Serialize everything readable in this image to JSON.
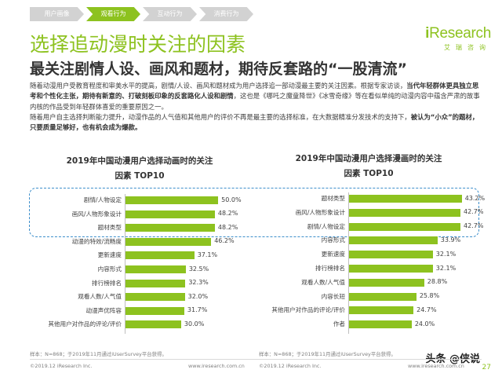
{
  "nav": {
    "tabs": [
      {
        "label": "用户画像",
        "active": false
      },
      {
        "label": "观看行为",
        "active": true
      },
      {
        "label": "互动行为",
        "active": false
      },
      {
        "label": "消费行为",
        "active": false
      }
    ]
  },
  "logo": {
    "main_prefix": "i",
    "main": "Research",
    "sub": "艾瑞咨询"
  },
  "title": "选择追动漫时关注的因素",
  "subtitle": "最关注剧情人设、画风和题材，期待反套路的“一股清流”",
  "body": {
    "p1_a": "随着动漫用户受教育程度和审美水平的提高，剧情/人设、画风和题材成为用户选择追一部动漫最主要的关注因素。根据专家访谈，",
    "p1_b": "当代年轻群体更具独立思考和个性化主张，期待有新意的、打破刻板印象的反套路化人设和剧情",
    "p1_c": "，这也是《哪吒之魔童降世》《冰雪奇缘》等在看似单纯的动漫内容中蕴含严肃的故事内核的作品受到年轻群体喜爱的重要原因之一。",
    "p2_a": "随着用户自主选择判断能力提升，动漫作品的人气值和其他用户的评价不再是最主要的选择标准，在大数据精准分发技术的支持下，",
    "p2_b": "被认为“小众”的题材，只要质量足够好，也有机会成为爆款。"
  },
  "chart_data": [
    {
      "type": "bar",
      "title": "2019年中国动漫用户选择动画时的关注因素 TOP10",
      "categories": [
        "剧情/人物设定",
        "画风/人物形象设计",
        "题材类型",
        "动漫的特效/流畅度",
        "更新速度",
        "内容形式",
        "排行榜排名",
        "观看人数/人气值",
        "动漫声优阵容",
        "其他用户对作品的评论/评价"
      ],
      "values": [
        50.0,
        48.2,
        48.2,
        46.2,
        37.1,
        32.5,
        32.3,
        32.0,
        31.7,
        30.0
      ],
      "value_labels": [
        "50.0%",
        "48.2%",
        "48.2%",
        "46.2%",
        "37.1%",
        "32.5%",
        "32.3%",
        "32.0%",
        "31.7%",
        "30.0%"
      ],
      "unit": "%",
      "xlim": [
        0,
        55
      ],
      "color": "#8dc21f"
    },
    {
      "type": "bar",
      "title": "2019年中国动漫用户选择漫画时的关注因素 TOP10",
      "categories": [
        "题材类型",
        "画风/人物形象设计",
        "剧情/人物设定",
        "内容形式",
        "更新速度",
        "排行榜排名",
        "观看人数/人气值",
        "内容长短",
        "其他用户对作品的评论/评价",
        "作者"
      ],
      "values": [
        43.2,
        42.7,
        42.7,
        33.9,
        32.1,
        32.1,
        28.8,
        25.8,
        24.7,
        24.0
      ],
      "value_labels": [
        "43.2%",
        "42.7%",
        "42.7%",
        "33.9%",
        "32.1%",
        "32.1%",
        "28.8%",
        "25.8%",
        "24.7%",
        "24.0%"
      ],
      "unit": "%",
      "xlim": [
        0,
        47.5
      ],
      "color": "#8dc21f"
    }
  ],
  "chart_titles": [
    {
      "line1": "2019年中国动漫用户选择动画时的关注",
      "line2": "因素 TOP10"
    },
    {
      "line1": "2019年中国动漫用户选择漫画时的关注",
      "line2": "因素 TOP10"
    }
  ],
  "sources": {
    "left": "样本：N=868；于2019年11月通过iUserSurvey平台获得。",
    "right": "样本：N=868；于2019年11月通过iUserSurvey平台获得。"
  },
  "footer": {
    "left_copyright": "©2019.12 iResearch Inc.",
    "left_url": "www.iresearch.com.cn",
    "right_copyright": "©2019.12 iResearch Inc.",
    "right_url": "www.iresearch.com.cn",
    "page": "27"
  },
  "watermark": {
    "text": "头条 @侠说"
  }
}
